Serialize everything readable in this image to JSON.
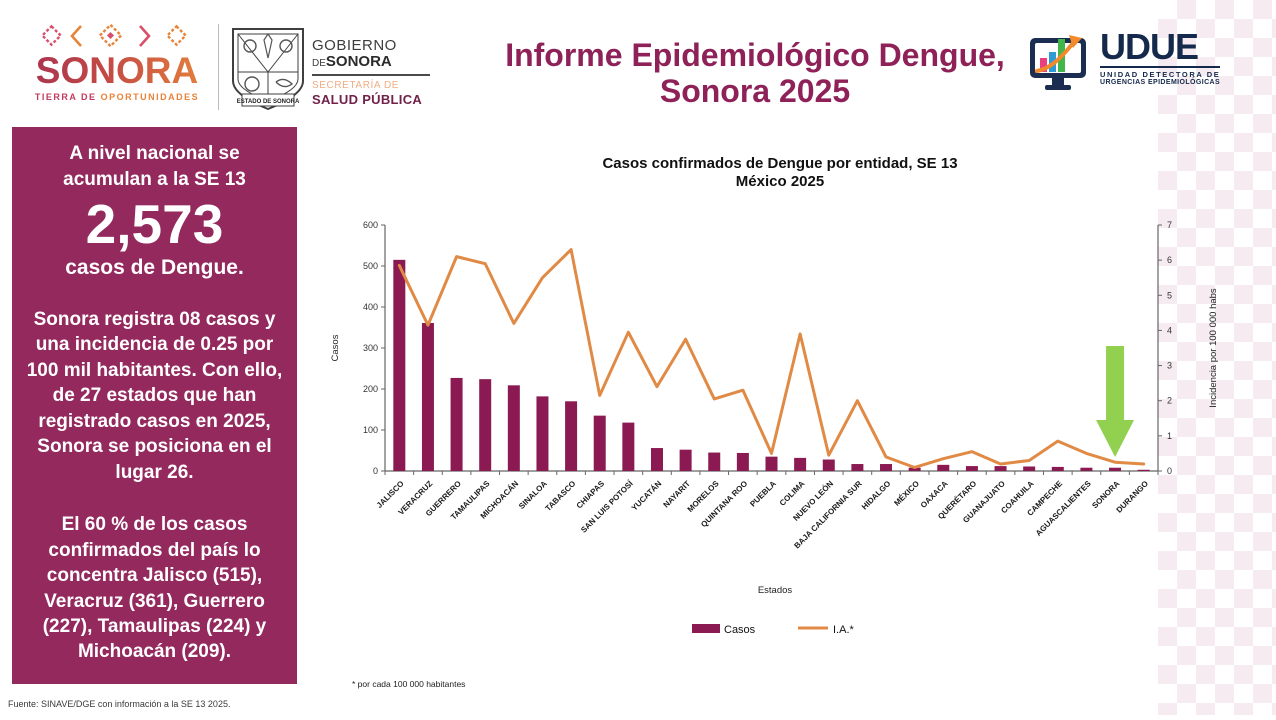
{
  "header": {
    "sonora_logo": {
      "name": "SONORA",
      "tagline_part1": "TIERRA DE",
      "tagline_part2": "OPORTUNIDADES"
    },
    "gobierno_logo": {
      "crest_caption": "ESTADO DE SONORA",
      "line1": "GOBIERNO",
      "line2_small": "DE",
      "line2_bold": "SONORA",
      "line3": "SECRETARÍA DE",
      "line4": "SALUD PÚBLICA"
    },
    "title_line1": "Informe Epidemiológico Dengue,",
    "title_line2": "Sonora 2025",
    "udue_logo": {
      "acronym": "UDUE",
      "line1": "UNIDAD DETECTORA DE",
      "line2": "URGENCIAS EPIDEMIOLÓGICAS"
    }
  },
  "sidebar": {
    "p1_intro": "A nivel nacional se acumulan a la SE 13",
    "p1_number": "2,573",
    "p1_suffix": "casos de Dengue.",
    "p2": "Sonora registra 08 casos y una incidencia de 0.25 por 100 mil habitantes. Con ello, de 27 estados que han registrado casos en 2025, Sonora se posiciona en el lugar 26.",
    "p3": "El 60 % de los casos confirmados del país lo concentra Jalisco (515), Veracruz (361), Guerrero (227), Tamaulipas (224) y Michoacán (209)."
  },
  "footer": {
    "source": "Fuente: SINAVE/DGE con información a la SE 13 2025."
  },
  "colors": {
    "bar": "#8b1a52",
    "line": "#e08a45",
    "arrow": "#92d050",
    "sidebar_bg": "#94295e",
    "title": "#8e2157",
    "axis": "#666666"
  },
  "chart_data": {
    "type": "bar",
    "combo": "bar+line",
    "title_line1": "Casos confirmados de Dengue por entidad, SE 13",
    "title_line2": "México 2025",
    "xlabel": "Estados",
    "ylabel_left": "Casos",
    "ylabel_right": "Incidencia por 100 000 habs",
    "ylim_left": [
      0,
      600
    ],
    "ytick_step_left": 100,
    "ylim_right": [
      0,
      7
    ],
    "ytick_step_right": 1,
    "legend": [
      "Casos",
      "I.A.*"
    ],
    "legend_position": "bottom",
    "footnote": "* por cada 100 000 habitantes",
    "annotation": {
      "type": "arrow-down",
      "target": "SONORA",
      "color": "#92d050"
    },
    "categories": [
      "JALISCO",
      "VERACRUZ",
      "GUERRERO",
      "TAMAULIPAS",
      "MICHOACÁN",
      "SINALOA",
      "TABASCO",
      "CHIAPAS",
      "SAN LUIS POTOSÍ",
      "YUCATÁN",
      "NAYARIT",
      "MORELOS",
      "QUINTANA ROO",
      "PUEBLA",
      "COLIMA",
      "NUEVO LEÓN",
      "BAJA CALIFORNIA SUR",
      "HIDALGO",
      "MÉXICO",
      "OAXACA",
      "QUERÉTARO",
      "GUANAJUATO",
      "COAHUILA",
      "CAMPECHE",
      "AGUASCALIENTES",
      "SONORA",
      "DURANGO"
    ],
    "series": [
      {
        "name": "Casos",
        "type": "bar",
        "axis": "left",
        "color": "#8b1a52",
        "values": [
          515,
          361,
          227,
          224,
          209,
          182,
          170,
          135,
          118,
          56,
          52,
          45,
          44,
          35,
          32,
          28,
          17,
          17,
          8,
          15,
          12,
          12,
          11,
          10,
          8,
          8,
          3
        ]
      },
      {
        "name": "I.A.*",
        "type": "line",
        "axis": "right",
        "color": "#e08a45",
        "values": [
          5.85,
          4.15,
          6.1,
          5.9,
          4.2,
          5.5,
          6.3,
          2.15,
          3.95,
          2.4,
          3.75,
          2.05,
          2.3,
          0.5,
          3.9,
          0.45,
          2.0,
          0.4,
          0.1,
          0.35,
          0.55,
          0.2,
          0.3,
          0.85,
          0.5,
          0.25,
          0.2
        ]
      }
    ]
  }
}
